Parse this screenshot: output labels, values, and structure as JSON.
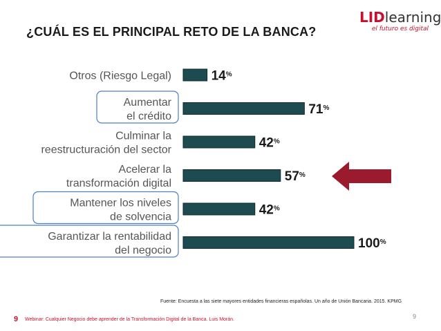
{
  "slide": {
    "title": "¿CUÁL ES EL PRINCIPAL RETO DE LA BANCA?",
    "logo": {
      "brand_red": "LID",
      "brand_gray": "learning",
      "tagline": "el futuro es digital"
    },
    "source": "Fuente: Encuesta a las siete mayores entidades financieras españolas. Un año de Unión Bancaria. 2015. KPMG",
    "page_number": "9",
    "footer_number": "9",
    "footer_text": "Webinar: Cualquier Negocio debe aprender de la Transformación Digital de la Banca. Luis Morán."
  },
  "colors": {
    "bar": "#1e4b4f",
    "arrow": "#9b1b2e",
    "highlight_box": "#4a7fc1",
    "label": "#555555"
  },
  "chart_data": {
    "type": "bar",
    "orientation": "horizontal",
    "title": "",
    "xlabel": "",
    "ylabel": "",
    "xlim": [
      0,
      100
    ],
    "unit": "%",
    "categories": [
      [
        "Otros (Riesgo Legal)"
      ],
      [
        "Aumentar",
        "el crédito"
      ],
      [
        "Culminar la",
        "reestructuración del sector"
      ],
      [
        "Acelerar la",
        "transformación digital"
      ],
      [
        "Mantener los niveles",
        "de solvencia"
      ],
      [
        "Garantizar la rentabilidad",
        "del negocio"
      ]
    ],
    "values": [
      14,
      71,
      42,
      57,
      42,
      100
    ],
    "highlighted": [
      false,
      true,
      false,
      false,
      true,
      true
    ],
    "arrow_points_to": "Acelerar la transformación digital"
  }
}
